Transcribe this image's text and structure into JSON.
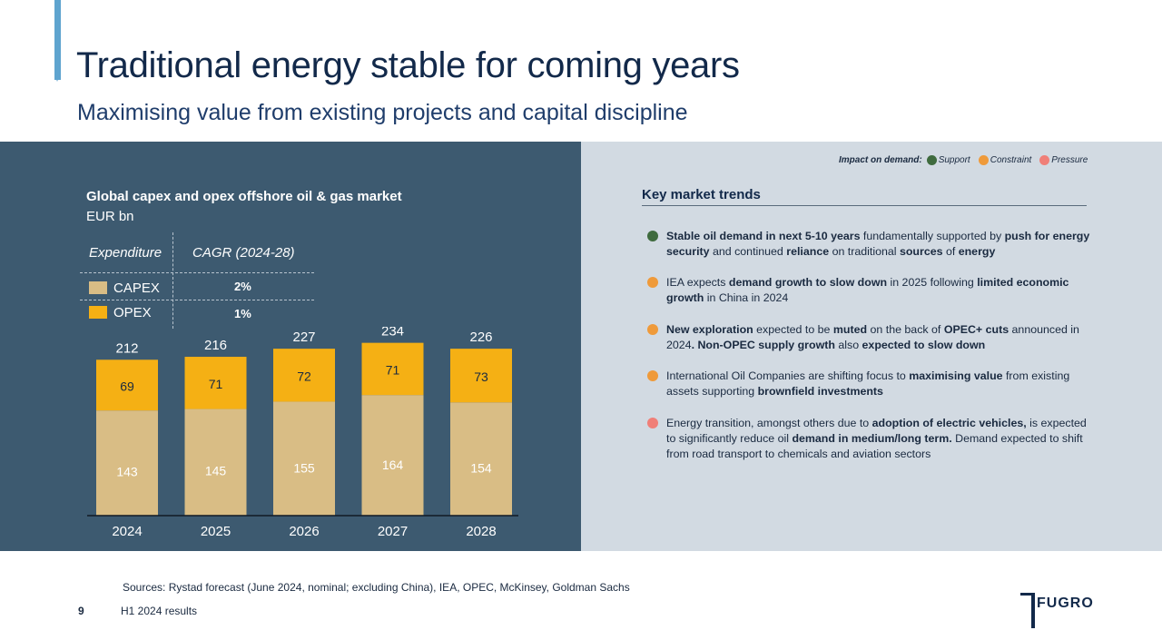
{
  "header": {
    "title": "Traditional energy stable for coming years",
    "subtitle": "Maximising value from existing projects and capital discipline"
  },
  "chart": {
    "title": "Global capex and opex offshore oil & gas market",
    "unit": "EUR bn",
    "table": {
      "col1": "Expenditure",
      "col2": "CAGR (2024-28)",
      "rows": [
        {
          "label": "CAPEX",
          "cagr": "2%",
          "color": "#d9bd85"
        },
        {
          "label": "OPEX",
          "cagr": "1%",
          "color": "#f5b014"
        }
      ]
    }
  },
  "chart_data": {
    "type": "bar",
    "stacked": true,
    "categories": [
      "2024",
      "2025",
      "2026",
      "2027",
      "2028"
    ],
    "series": [
      {
        "name": "CAPEX",
        "values": [
          143,
          145,
          155,
          164,
          154
        ],
        "color": "#d9bd85"
      },
      {
        "name": "OPEX",
        "values": [
          69,
          71,
          72,
          71,
          73
        ],
        "color": "#f5b014"
      }
    ],
    "totals": [
      212,
      216,
      227,
      234,
      226
    ],
    "title": "Global capex and opex offshore oil & gas market",
    "ylabel": "EUR bn",
    "ylim": [
      0,
      250
    ],
    "grid": false
  },
  "impact": {
    "label": "Impact on demand:",
    "items": [
      {
        "label": "Support",
        "color": "#3f6b3e"
      },
      {
        "label": "Constraint",
        "color": "#ef9a3a"
      },
      {
        "label": "Pressure",
        "color": "#f07f78"
      }
    ]
  },
  "trends": {
    "title": "Key market trends",
    "items": [
      {
        "impact": "Support",
        "color": "#3f6b3e",
        "segments": [
          {
            "t": "Stable oil demand in next 5-10 years",
            "b": true
          },
          {
            "t": " fundamentally supported by ",
            "b": false
          },
          {
            "t": "push for energy security",
            "b": true
          },
          {
            "t": " and continued ",
            "b": false
          },
          {
            "t": "reliance",
            "b": true
          },
          {
            "t": " on traditional ",
            "b": false
          },
          {
            "t": "sources",
            "b": true
          },
          {
            "t": " of ",
            "b": false
          },
          {
            "t": "energy",
            "b": true
          }
        ]
      },
      {
        "impact": "Constraint",
        "color": "#ef9a3a",
        "segments": [
          {
            "t": "IEA expects ",
            "b": false
          },
          {
            "t": "demand growth to slow down",
            "b": true
          },
          {
            "t": " in 2025 following ",
            "b": false
          },
          {
            "t": "limited economic growth",
            "b": true
          },
          {
            "t": " in China in 2024",
            "b": false
          }
        ]
      },
      {
        "impact": "Constraint",
        "color": "#ef9a3a",
        "segments": [
          {
            "t": "New exploration",
            "b": true
          },
          {
            "t": " expected to be ",
            "b": false
          },
          {
            "t": "muted",
            "b": true
          },
          {
            "t": " on the back of ",
            "b": false
          },
          {
            "t": "OPEC+ cuts",
            "b": true
          },
          {
            "t": " announced in 2024",
            "b": false
          },
          {
            "t": ".  Non-OPEC supply growth",
            "b": true
          },
          {
            "t": " also ",
            "b": false
          },
          {
            "t": "expected to slow down",
            "b": true
          }
        ]
      },
      {
        "impact": "Constraint",
        "color": "#ef9a3a",
        "segments": [
          {
            "t": "International Oil Companies are shifting focus to ",
            "b": false
          },
          {
            "t": "maximising value",
            "b": true
          },
          {
            "t": " from existing assets supporting ",
            "b": false
          },
          {
            "t": "brownfield investments",
            "b": true
          }
        ]
      },
      {
        "impact": "Pressure",
        "color": "#f07f78",
        "segments": [
          {
            "t": "Energy transition, amongst others due to ",
            "b": false
          },
          {
            "t": "adoption of electric vehicles,",
            "b": true
          },
          {
            "t": " is expected to significantly reduce oil ",
            "b": false
          },
          {
            "t": "demand in medium/long term.",
            "b": true
          },
          {
            "t": " Demand expected to shift from road transport to chemicals and aviation sectors",
            "b": false
          }
        ]
      }
    ]
  },
  "footer": {
    "sources": "Sources: Rystad forecast (June 2024, nominal; excluding China), IEA, OPEC, McKinsey, Goldman Sachs",
    "page": "9",
    "label": "H1 2024 results",
    "logo": "FUGRO"
  }
}
